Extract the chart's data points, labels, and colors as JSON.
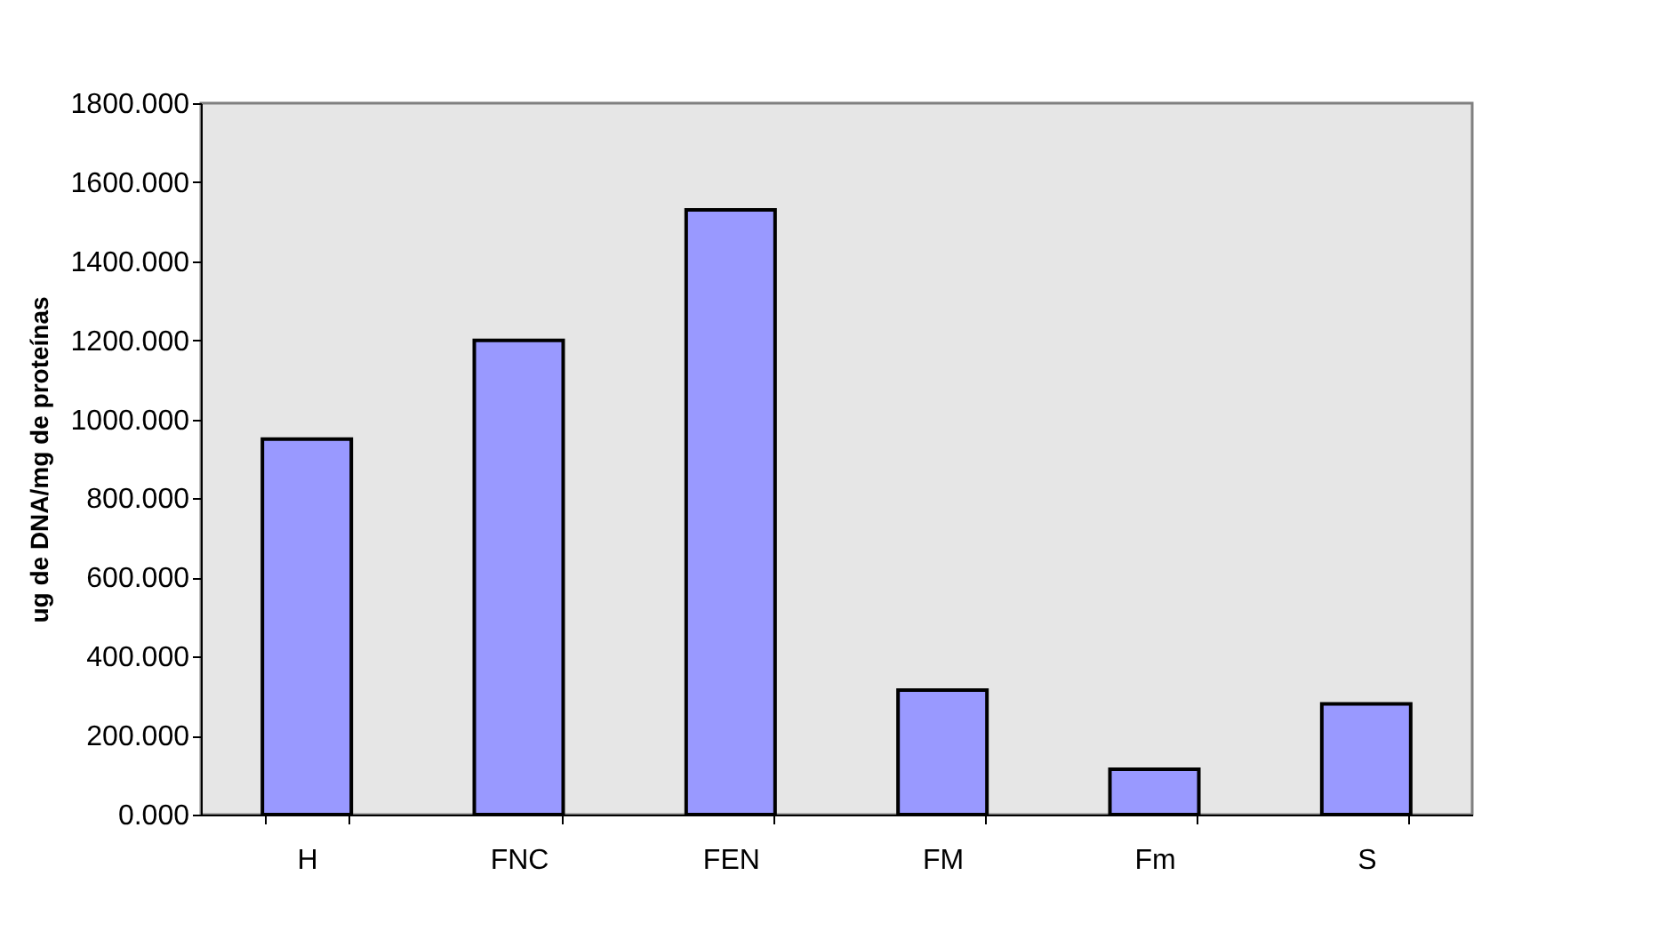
{
  "chart_data": {
    "type": "bar",
    "ylabel": "ug de DNA/mg de proteínas",
    "categories": [
      "H",
      "FNC",
      "FEN",
      "FM",
      "Fm",
      "S"
    ],
    "values": [
      950,
      1200,
      1530,
      315,
      115,
      280
    ],
    "color": "#9999ff",
    "ylim": [
      0,
      1800
    ],
    "yticks": [
      {
        "value": 0,
        "label": "0.000"
      },
      {
        "value": 200,
        "label": "200.000"
      },
      {
        "value": 400,
        "label": "400.000"
      },
      {
        "value": 600,
        "label": "600.000"
      },
      {
        "value": 800,
        "label": "800.000"
      },
      {
        "value": 1000,
        "label": "1000.000"
      },
      {
        "value": 1200,
        "label": "1200.000"
      },
      {
        "value": 1400,
        "label": "1400.000"
      },
      {
        "value": 1600,
        "label": "1600.000"
      },
      {
        "value": 1800,
        "label": "1800.000"
      }
    ],
    "grid": false
  }
}
